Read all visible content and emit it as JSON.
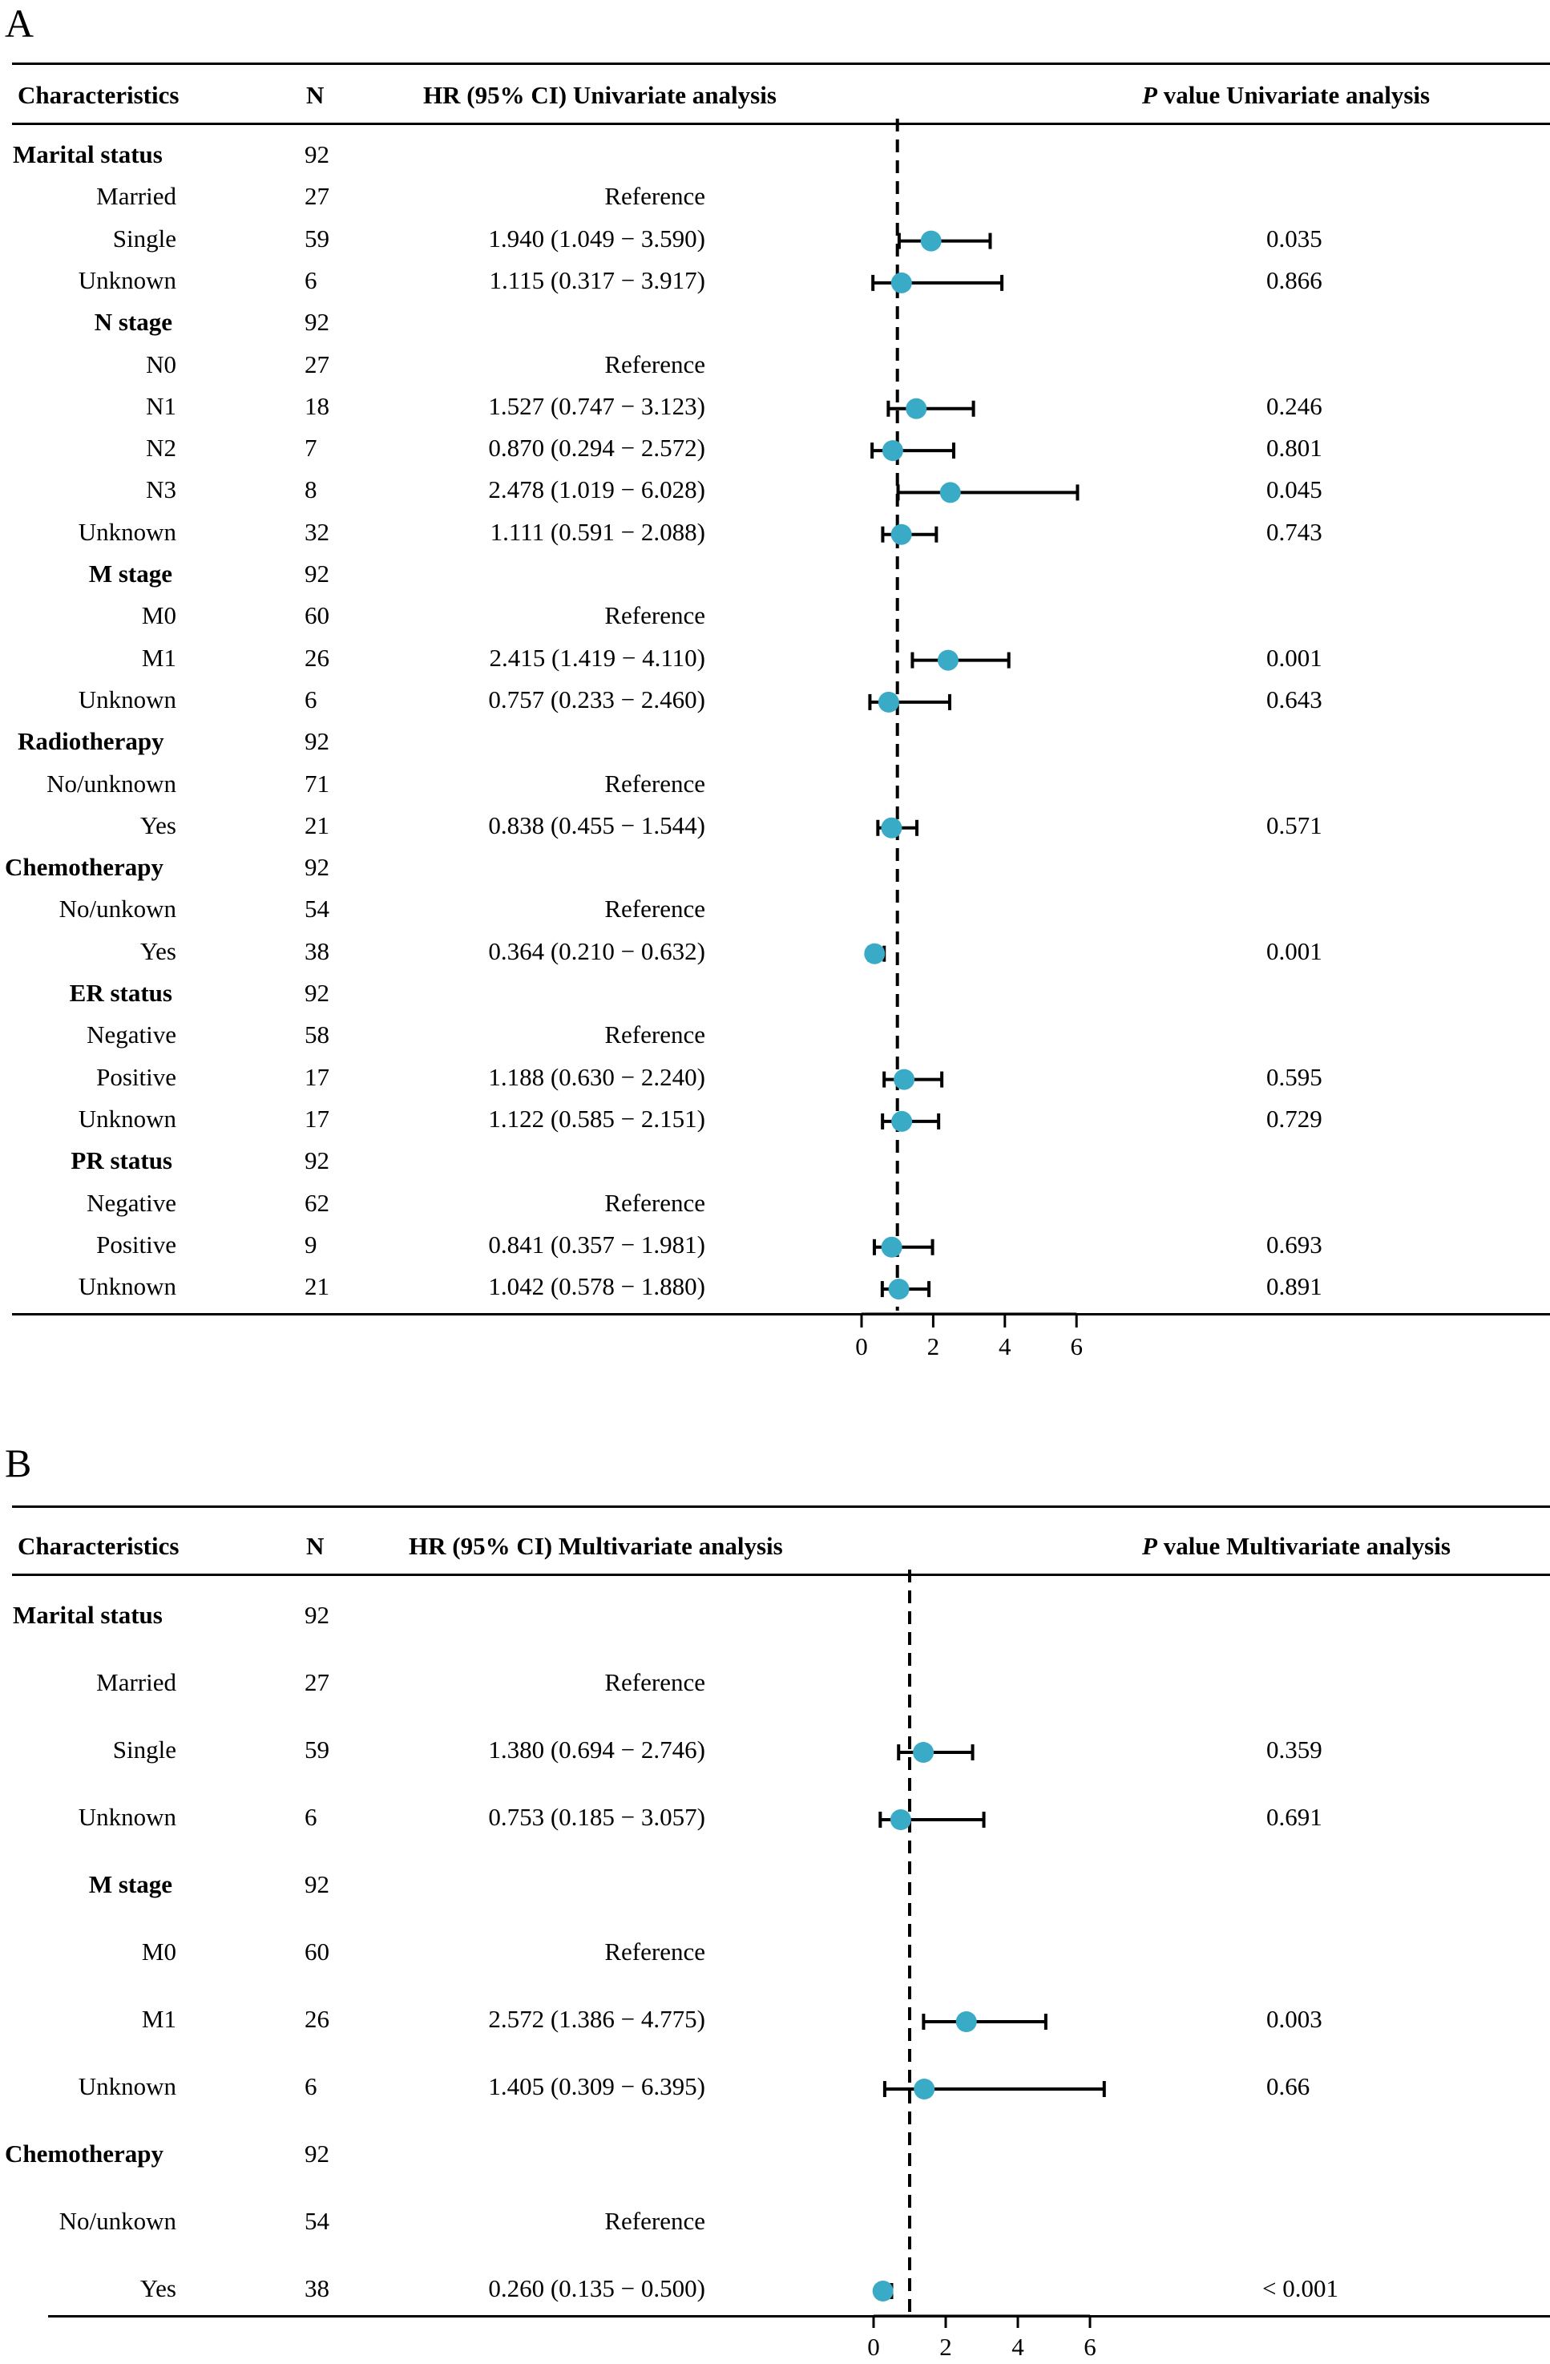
{
  "colors": {
    "point": "#3aabc6",
    "line": "#000000"
  },
  "panels": [
    {
      "label": "A",
      "headers": {
        "characteristics": "Characteristics",
        "n": "N",
        "hr": "HR (95% CI) Univariate analysis",
        "p_italic": "P",
        "p_rest": " value Univariate analysis"
      },
      "rows": [
        {
          "label": "Marital status",
          "n": "92",
          "bold": true
        },
        {
          "label": "Married",
          "n": "27",
          "hr_text": "Reference"
        },
        {
          "label": "Single",
          "n": "59",
          "hr_text": "1.940 (1.049 − 3.590)",
          "hr": 1.94,
          "lo": 1.049,
          "hi": 3.59,
          "p": "0.035"
        },
        {
          "label": "Unknown",
          "n": "6",
          "hr_text": "1.115 (0.317 − 3.917)",
          "hr": 1.115,
          "lo": 0.317,
          "hi": 3.917,
          "p": "0.866"
        },
        {
          "label": "N stage",
          "n": "92",
          "bold": true
        },
        {
          "label": "N0",
          "n": "27",
          "hr_text": "Reference"
        },
        {
          "label": "N1",
          "n": "18",
          "hr_text": "1.527 (0.747 − 3.123)",
          "hr": 1.527,
          "lo": 0.747,
          "hi": 3.123,
          "p": "0.246"
        },
        {
          "label": "N2",
          "n": "7",
          "hr_text": "0.870 (0.294 − 2.572)",
          "hr": 0.87,
          "lo": 0.294,
          "hi": 2.572,
          "p": "0.801"
        },
        {
          "label": "N3",
          "n": "8",
          "hr_text": "2.478 (1.019 − 6.028)",
          "hr": 2.478,
          "lo": 1.019,
          "hi": 6.028,
          "p": "0.045"
        },
        {
          "label": "Unknown",
          "n": "32",
          "hr_text": "1.111 (0.591 − 2.088)",
          "hr": 1.111,
          "lo": 0.591,
          "hi": 2.088,
          "p": "0.743"
        },
        {
          "label": "M stage",
          "n": "92",
          "bold": true
        },
        {
          "label": "M0",
          "n": "60",
          "hr_text": "Reference"
        },
        {
          "label": "M1",
          "n": "26",
          "hr_text": "2.415 (1.419 − 4.110)",
          "hr": 2.415,
          "lo": 1.419,
          "hi": 4.11,
          "p": "0.001"
        },
        {
          "label": "Unknown",
          "n": "6",
          "hr_text": "0.757 (0.233 − 2.460)",
          "hr": 0.757,
          "lo": 0.233,
          "hi": 2.46,
          "p": "0.643"
        },
        {
          "label": "Radiotherapy",
          "n": "92",
          "bold": true
        },
        {
          "label": "No/unknown",
          "n": "71",
          "hr_text": "Reference"
        },
        {
          "label": "Yes",
          "n": "21",
          "hr_text": "0.838 (0.455 − 1.544)",
          "hr": 0.838,
          "lo": 0.455,
          "hi": 1.544,
          "p": "0.571"
        },
        {
          "label": "Chemotherapy",
          "n": "92",
          "bold": true
        },
        {
          "label": "No/unkown",
          "n": "54",
          "hr_text": "Reference"
        },
        {
          "label": "Yes",
          "n": "38",
          "hr_text": "0.364 (0.210 − 0.632)",
          "hr": 0.364,
          "lo": 0.21,
          "hi": 0.632,
          "p": "0.001"
        },
        {
          "label": "ER status",
          "n": "92",
          "bold": true
        },
        {
          "label": "Negative",
          "n": "58",
          "hr_text": "Reference"
        },
        {
          "label": "Positive",
          "n": "17",
          "hr_text": "1.188 (0.630 − 2.240)",
          "hr": 1.188,
          "lo": 0.63,
          "hi": 2.24,
          "p": "0.595"
        },
        {
          "label": "Unknown",
          "n": "17",
          "hr_text": "1.122 (0.585 − 2.151)",
          "hr": 1.122,
          "lo": 0.585,
          "hi": 2.151,
          "p": "0.729"
        },
        {
          "label": "PR status",
          "n": "92",
          "bold": true
        },
        {
          "label": "Negative",
          "n": "62",
          "hr_text": "Reference"
        },
        {
          "label": "Positive",
          "n": "9",
          "hr_text": "0.841 (0.357 − 1.981)",
          "hr": 0.841,
          "lo": 0.357,
          "hi": 1.981,
          "p": "0.693"
        },
        {
          "label": "Unknown",
          "n": "21",
          "hr_text": "1.042 (0.578 − 1.880)",
          "hr": 1.042,
          "lo": 0.578,
          "hi": 1.88,
          "p": "0.891"
        }
      ],
      "x_ticks": [
        "0",
        "2",
        "4",
        "6"
      ]
    },
    {
      "label": "B",
      "headers": {
        "characteristics": "Characteristics",
        "n": "N",
        "hr": "HR (95% CI) Multivariate analysis",
        "p_italic": "P",
        "p_rest": " value Multivariate analysis"
      },
      "rows": [
        {
          "label": "Marital status",
          "n": "92",
          "bold": true
        },
        {
          "label": "Married",
          "n": "27",
          "hr_text": "Reference"
        },
        {
          "label": "Single",
          "n": "59",
          "hr_text": "1.380 (0.694 − 2.746)",
          "hr": 1.38,
          "lo": 0.694,
          "hi": 2.746,
          "p": "0.359"
        },
        {
          "label": "Unknown",
          "n": "6",
          "hr_text": "0.753 (0.185 − 3.057)",
          "hr": 0.753,
          "lo": 0.185,
          "hi": 3.057,
          "p": "0.691"
        },
        {
          "label": "M stage",
          "n": "92",
          "bold": true
        },
        {
          "label": "M0",
          "n": "60",
          "hr_text": "Reference"
        },
        {
          "label": "M1",
          "n": "26",
          "hr_text": "2.572 (1.386 − 4.775)",
          "hr": 2.572,
          "lo": 1.386,
          "hi": 4.775,
          "p": "0.003"
        },
        {
          "label": "Unknown",
          "n": "6",
          "hr_text": "1.405 (0.309 − 6.395)",
          "hr": 1.405,
          "lo": 0.309,
          "hi": 6.395,
          "p": "0.66"
        },
        {
          "label": "Chemotherapy",
          "n": "92",
          "bold": true
        },
        {
          "label": "No/unkown",
          "n": "54",
          "hr_text": "Reference"
        },
        {
          "label": "Yes",
          "n": "38",
          "hr_text": "0.260 (0.135 − 0.500)",
          "hr": 0.26,
          "lo": 0.135,
          "hi": 0.5,
          "p": "< 0.001"
        }
      ],
      "x_ticks": [
        "0",
        "2",
        "4",
        "6"
      ]
    }
  ],
  "chart_data": [
    {
      "type": "forest",
      "title": "A",
      "xlabel": "",
      "ylabel": "",
      "reference_line": 1,
      "x_ticks": [
        0,
        2,
        4,
        6
      ],
      "categories": [
        "Single",
        "Unknown",
        "N1",
        "N2",
        "N3",
        "Unknown",
        "M1",
        "Unknown",
        "Yes",
        "Yes",
        "Positive",
        "Unknown",
        "Positive",
        "Unknown"
      ],
      "series": [
        {
          "name": "HR",
          "values": [
            1.94,
            1.115,
            1.527,
            0.87,
            2.478,
            1.111,
            2.415,
            0.757,
            0.838,
            0.364,
            1.188,
            1.122,
            0.841,
            1.042
          ]
        },
        {
          "name": "CI lower",
          "values": [
            1.049,
            0.317,
            0.747,
            0.294,
            1.019,
            0.591,
            1.419,
            0.233,
            0.455,
            0.21,
            0.63,
            0.585,
            0.357,
            0.578
          ]
        },
        {
          "name": "CI upper",
          "values": [
            3.59,
            3.917,
            3.123,
            2.572,
            6.028,
            2.088,
            4.11,
            2.46,
            1.544,
            0.632,
            2.24,
            2.151,
            1.981,
            1.88
          ]
        }
      ]
    },
    {
      "type": "forest",
      "title": "B",
      "xlabel": "",
      "ylabel": "",
      "reference_line": 1,
      "x_ticks": [
        0,
        2,
        4,
        6
      ],
      "categories": [
        "Single",
        "Unknown",
        "M1",
        "Unknown",
        "Yes"
      ],
      "series": [
        {
          "name": "HR",
          "values": [
            1.38,
            0.753,
            2.572,
            1.405,
            0.26
          ]
        },
        {
          "name": "CI lower",
          "values": [
            0.694,
            0.185,
            1.386,
            0.309,
            0.135
          ]
        },
        {
          "name": "CI upper",
          "values": [
            2.746,
            3.057,
            4.775,
            6.395,
            0.5
          ]
        }
      ]
    }
  ]
}
